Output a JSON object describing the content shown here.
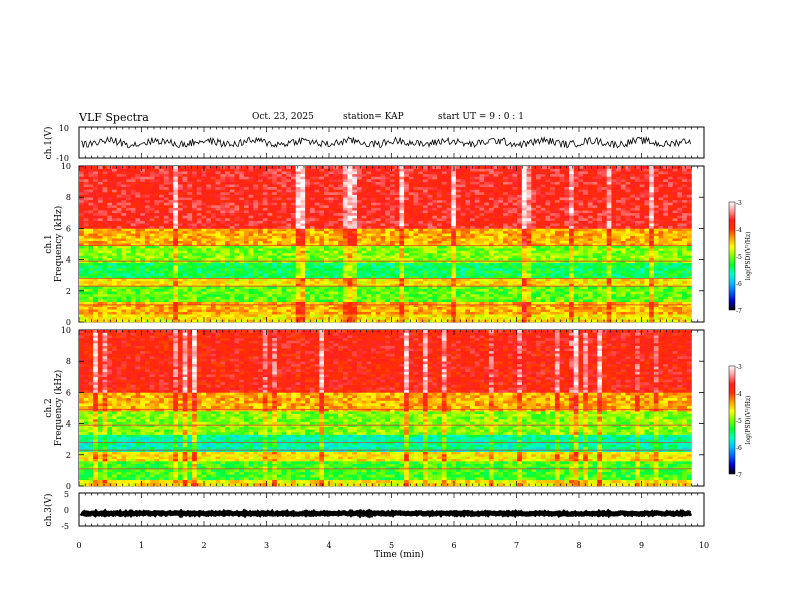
{
  "header": {
    "title": "VLF Spectra",
    "date": "Oct. 23, 2025",
    "station": "station= KAP",
    "start": "start  UT  =  9 : 0 : 1"
  },
  "colors": {
    "stops": [
      "#000000",
      "#0000cc",
      "#0060ff",
      "#00c0ff",
      "#00ffc0",
      "#00ff30",
      "#80ff00",
      "#ffff00",
      "#ffa000",
      "#ff3000",
      "#ff2020",
      "#ff9999",
      "#ffffff"
    ]
  },
  "chart_data": [
    {
      "type": "line",
      "title": "",
      "ylabel": "ch.1(V)",
      "ylim": [
        -10,
        10
      ],
      "yticks": [
        "10",
        "-10"
      ],
      "series": [
        {
          "name": "ch.1 waveform",
          "mean": 0,
          "amplitude": 3
        }
      ]
    },
    {
      "type": "heatmap",
      "ylabel": "ch.1\nFrequency (kHz)",
      "xlim": [
        0,
        10
      ],
      "ylim": [
        0,
        10
      ],
      "yticks": [
        "0",
        "2",
        "4",
        "6",
        "8",
        "10"
      ],
      "data_end_min": 9.8,
      "bands": [
        {
          "from": 0,
          "to": 0.5,
          "level": -4.6
        },
        {
          "from": 0.5,
          "to": 1.3,
          "level": -4.4
        },
        {
          "from": 1.3,
          "to": 2.3,
          "level": -5.1
        },
        {
          "from": 2.3,
          "to": 2.8,
          "level": -4.6
        },
        {
          "from": 2.8,
          "to": 3.8,
          "level": -5.4
        },
        {
          "from": 3.8,
          "to": 4.9,
          "level": -5.0
        },
        {
          "from": 4.9,
          "to": 6.0,
          "level": -4.4
        },
        {
          "from": 6.0,
          "to": 10,
          "level": -3.7
        }
      ],
      "colorbar": {
        "label": "log(PSD)(V²/Hz)",
        "min": -7,
        "max": -3,
        "ticks": [
          "-3",
          "-4",
          "-5",
          "-6",
          "-7"
        ]
      }
    },
    {
      "type": "heatmap",
      "ylabel": "ch.2\nFrequency (kHz)",
      "xlim": [
        0,
        10
      ],
      "ylim": [
        0,
        10
      ],
      "yticks": [
        "0",
        "2",
        "4",
        "6",
        "8",
        "10"
      ],
      "data_end_min": 9.8,
      "bands": [
        {
          "from": 0,
          "to": 0.4,
          "level": -4.6
        },
        {
          "from": 0.4,
          "to": 1.6,
          "level": -5.2
        },
        {
          "from": 1.6,
          "to": 2.2,
          "level": -4.6
        },
        {
          "from": 2.2,
          "to": 3.3,
          "level": -5.6
        },
        {
          "from": 3.3,
          "to": 4.8,
          "level": -5.0
        },
        {
          "from": 4.8,
          "to": 6.0,
          "level": -4.4
        },
        {
          "from": 6.0,
          "to": 10,
          "level": -3.8
        }
      ],
      "colorbar": {
        "label": "log(PSD)(V²/Hz)",
        "min": -7,
        "max": -3,
        "ticks": [
          "-3",
          "-4",
          "-5",
          "-6",
          "-7"
        ]
      }
    },
    {
      "type": "line",
      "ylabel": "ch.3(V)",
      "ylim": [
        -5,
        5
      ],
      "yticks": [
        "5",
        "0",
        "-5"
      ],
      "series": [
        {
          "name": "ch.3 waveform",
          "mean": -1.2,
          "amplitude": 0.25
        }
      ]
    }
  ],
  "xaxis": {
    "label": "Time (min)",
    "ticks": [
      "0",
      "1",
      "2",
      "3",
      "4",
      "5",
      "6",
      "7",
      "8",
      "9",
      "10"
    ]
  }
}
